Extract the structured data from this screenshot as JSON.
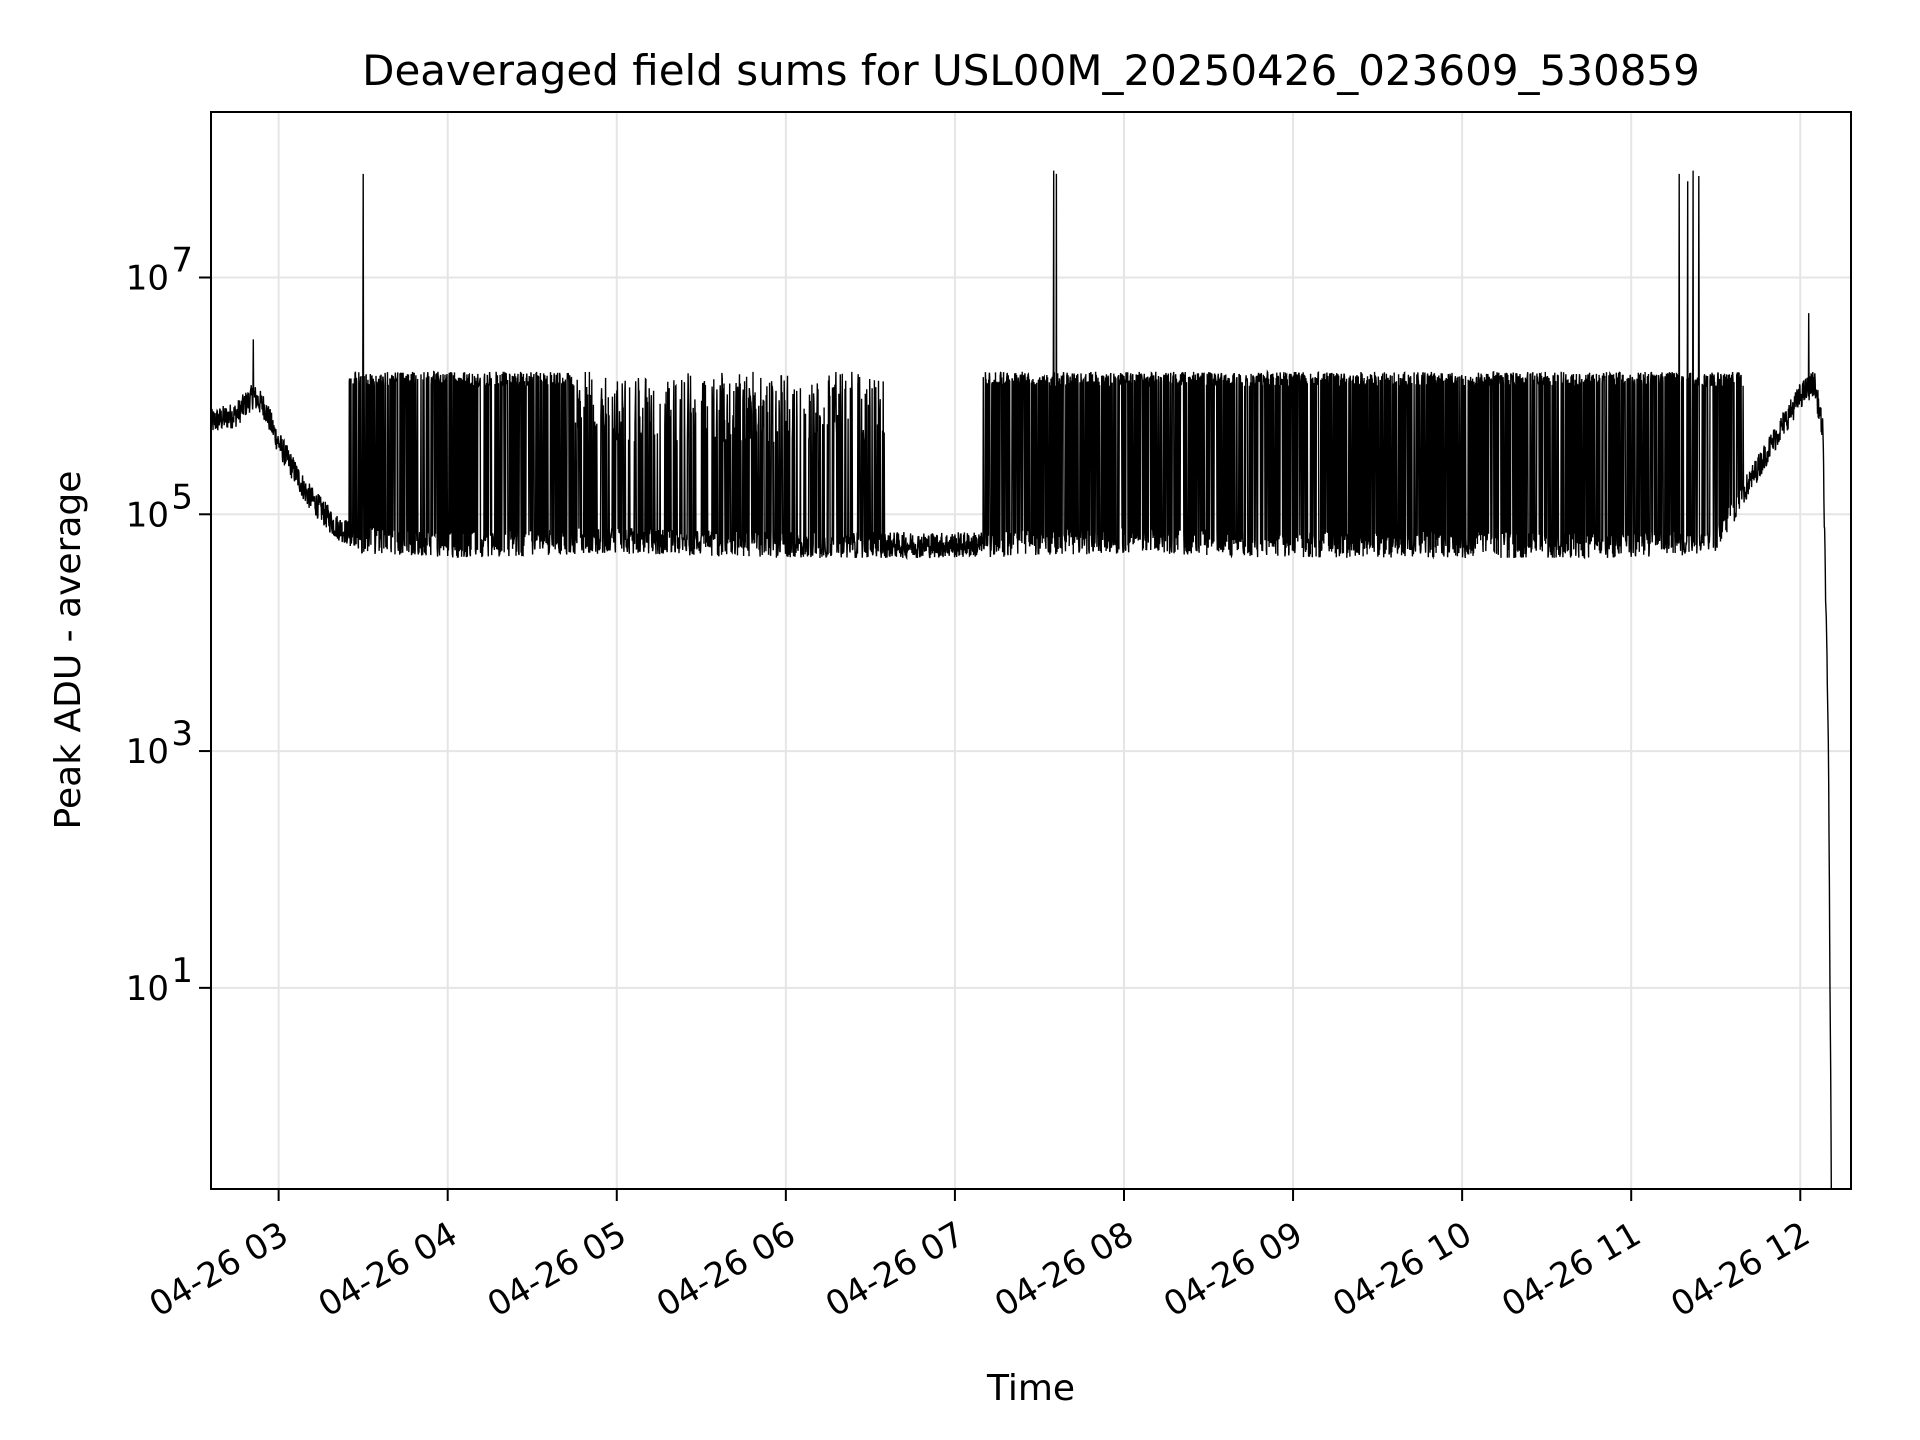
{
  "chart_data": {
    "type": "line",
    "title": "Deaveraged field sums for USL00M_20250426_023609_530859",
    "xlabel": "Time",
    "ylabel": "Peak ADU - average",
    "x_axis": {
      "kind": "datetime",
      "range": [
        "2025-04-26 02:36",
        "2025-04-26 12:18"
      ],
      "ticks": [
        "04-26 03",
        "04-26 04",
        "04-26 05",
        "04-26 06",
        "04-26 07",
        "04-26 08",
        "04-26 09",
        "04-26 10",
        "04-26 11",
        "04-26 12"
      ],
      "tick_rotation_deg": 30
    },
    "y_axis": {
      "scale": "log",
      "range": [
        0.2,
        250000000
      ],
      "ticks": [
        {
          "value": 10,
          "base": "10",
          "exp": "1"
        },
        {
          "value": 1000,
          "base": "10",
          "exp": "3"
        },
        {
          "value": 100000,
          "base": "10",
          "exp": "5"
        },
        {
          "value": 10000000,
          "base": "10",
          "exp": "7"
        }
      ]
    },
    "grid": true,
    "legend": "none",
    "line_color": "#000000",
    "grid_color": "#e5e5e5",
    "series": [
      {
        "x": [
          "2025-04-26 02:36",
          "2025-04-26 02:45",
          "2025-04-26 02:51",
          "2025-04-26 02:55",
          "2025-04-26 03:00",
          "2025-04-26 03:10",
          "2025-04-26 03:20",
          "2025-04-26 03:30",
          "2025-04-26 04:00",
          "2025-04-26 05:00",
          "2025-04-26 06:00",
          "2025-04-26 06:30",
          "2025-04-26 07:00",
          "2025-04-26 08:00",
          "2025-04-26 09:00",
          "2025-04-26 10:00",
          "2025-04-26 11:00",
          "2025-04-26 11:30",
          "2025-04-26 11:50",
          "2025-04-26 12:00",
          "2025-04-26 12:05",
          "2025-04-26 12:08",
          "2025-04-26 12:10",
          "2025-04-26 12:11"
        ],
        "y_baseline": [
          600000,
          700000,
          1000000,
          800000,
          400000,
          150000,
          80000,
          60000,
          55000,
          60000,
          55000,
          55000,
          55000,
          60000,
          55000,
          55000,
          55000,
          60000,
          400000,
          1000000,
          1300000,
          500000,
          1000,
          0.3
        ],
        "burst_top": 1600000,
        "bursts": [
          {
            "start": "2025-04-26 03:25",
            "end": "2025-04-26 04:45",
            "density": "dense"
          },
          {
            "start": "2025-04-26 04:45",
            "end": "2025-04-26 06:35",
            "density": "moderate"
          },
          {
            "start": "2025-04-26 07:10",
            "end": "2025-04-26 11:40",
            "density": "dense"
          }
        ],
        "spikes": [
          {
            "x": "2025-04-26 02:51",
            "y": 3000000
          },
          {
            "x": "2025-04-26 03:30",
            "y": 75000000
          },
          {
            "x": "2025-04-26 07:35",
            "y": 80000000
          },
          {
            "x": "2025-04-26 07:36",
            "y": 75000000
          },
          {
            "x": "2025-04-26 11:17",
            "y": 75000000
          },
          {
            "x": "2025-04-26 11:20",
            "y": 65000000
          },
          {
            "x": "2025-04-26 11:22",
            "y": 80000000
          },
          {
            "x": "2025-04-26 11:24",
            "y": 72000000
          },
          {
            "x": "2025-04-26 12:03",
            "y": 5000000
          }
        ]
      }
    ]
  }
}
